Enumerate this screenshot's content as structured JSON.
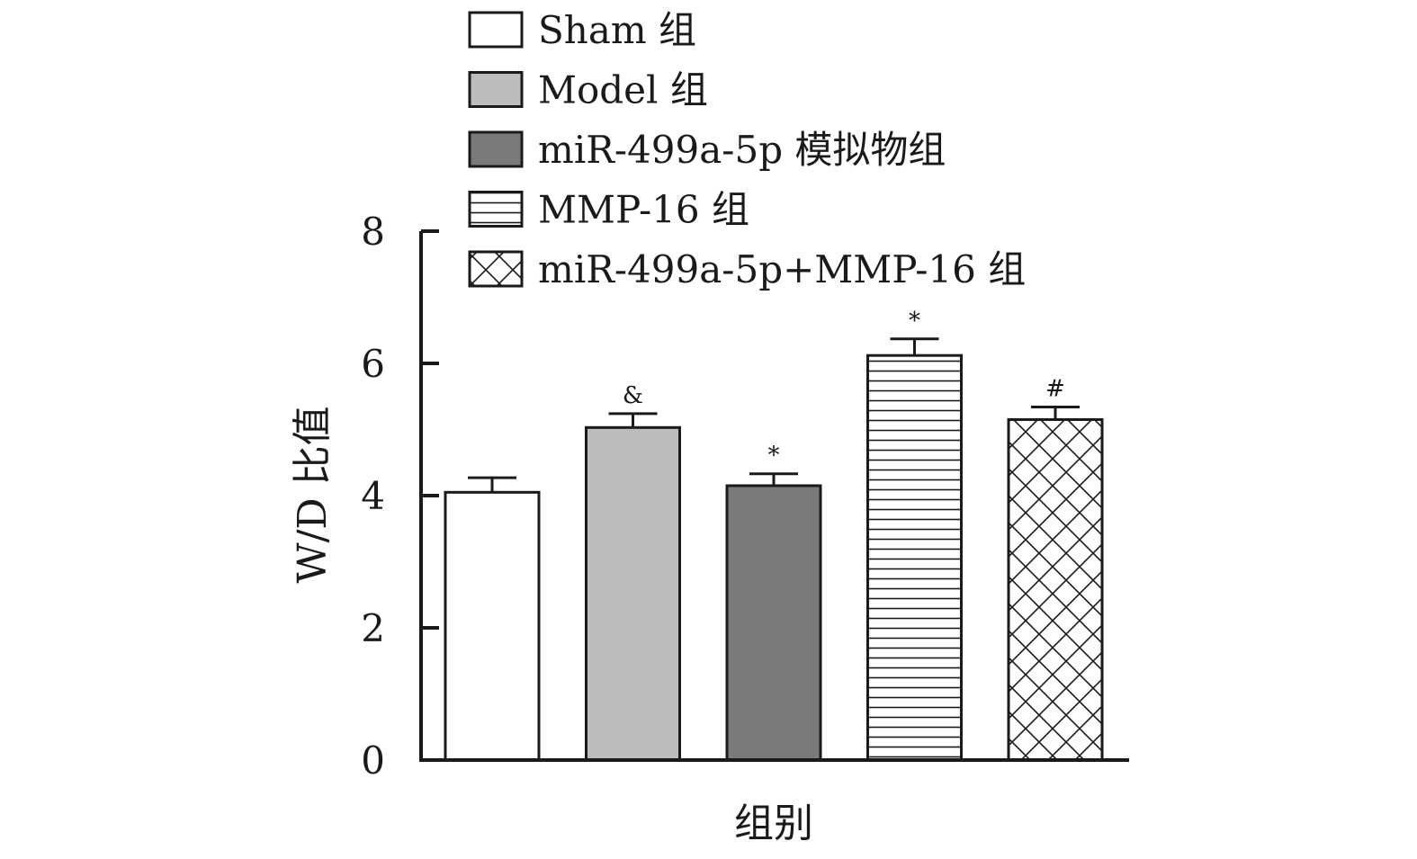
{
  "chart_data": {
    "type": "bar",
    "xlabel": "组别",
    "ylabel": "W/D 比值",
    "ylim": [
      0,
      8
    ],
    "yticks": [
      0,
      2,
      4,
      6,
      8
    ],
    "grid": false,
    "legend_position": "top",
    "series": [
      {
        "name": "Sham 组",
        "value": 4.05,
        "error": 0.22,
        "significance": "",
        "fill": "#ffffff",
        "pattern": "none"
      },
      {
        "name": "Model 组",
        "value": 5.03,
        "error": 0.21,
        "significance": "&",
        "fill": "#bcbcbc",
        "pattern": "none"
      },
      {
        "name": "miR-499a-5p 模拟物组",
        "value": 4.15,
        "error": 0.18,
        "significance": "*",
        "fill": "#7a7a7a",
        "pattern": "none"
      },
      {
        "name": "MMP-16 组",
        "value": 6.12,
        "error": 0.25,
        "significance": "*",
        "fill": "#ffffff",
        "pattern": "horizontal-lines"
      },
      {
        "name": "miR-499a-5p+MMP-16 组",
        "value": 5.15,
        "error": 0.19,
        "significance": "#",
        "fill": "#ffffff",
        "pattern": "crosshatch"
      }
    ]
  }
}
